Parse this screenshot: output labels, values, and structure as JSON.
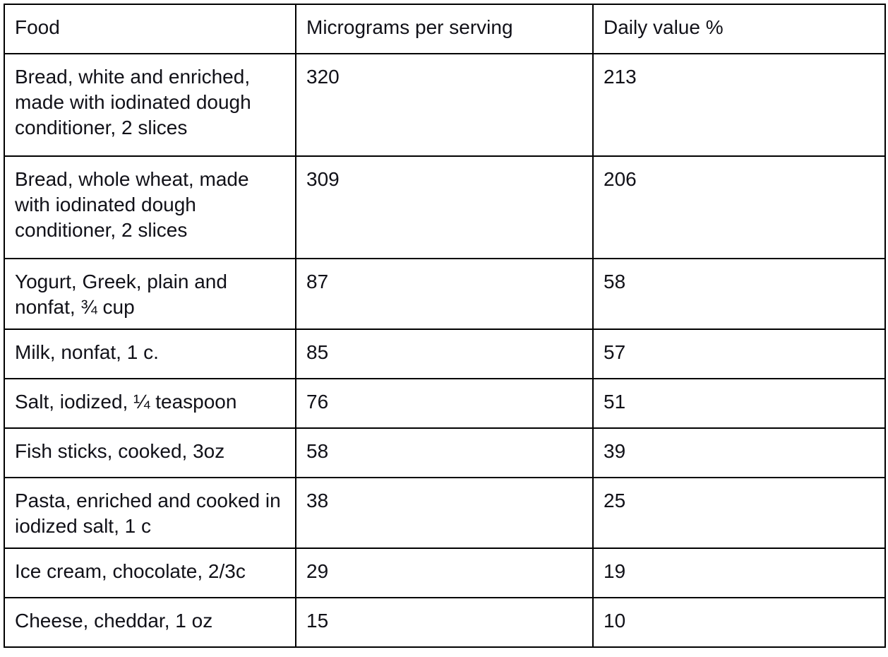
{
  "table": {
    "headers": [
      "Food",
      "Micrograms per serving",
      "Daily value %"
    ],
    "rows": [
      {
        "food": "Bread, white and enriched, made with iodinated dough conditioner, 2 slices",
        "micrograms": "320",
        "daily_value": "213"
      },
      {
        "food": "Bread, whole wheat, made with iodinated dough conditioner, 2 slices",
        "micrograms": "309",
        "daily_value": "206"
      },
      {
        "food": "Yogurt, Greek, plain and nonfat, ¾ cup",
        "micrograms": "87",
        "daily_value": "58"
      },
      {
        "food": "Milk, nonfat, 1 c.",
        "micrograms": "85",
        "daily_value": "57"
      },
      {
        "food": "Salt, iodized, ¼ teaspoon",
        "micrograms": "76",
        "daily_value": "51"
      },
      {
        "food": "Fish sticks, cooked, 3oz",
        "micrograms": "58",
        "daily_value": "39"
      },
      {
        "food": "Pasta, enriched and cooked in iodized salt, 1 c",
        "micrograms": "38",
        "daily_value": "25"
      },
      {
        "food": "Ice cream, chocolate, 2/3c",
        "micrograms": "29",
        "daily_value": "19"
      },
      {
        "food": "Cheese, cheddar, 1 oz",
        "micrograms": "15",
        "daily_value": "10"
      }
    ]
  },
  "colors": {
    "text": "#111118",
    "border": "#000000",
    "background": "#ffffff"
  }
}
